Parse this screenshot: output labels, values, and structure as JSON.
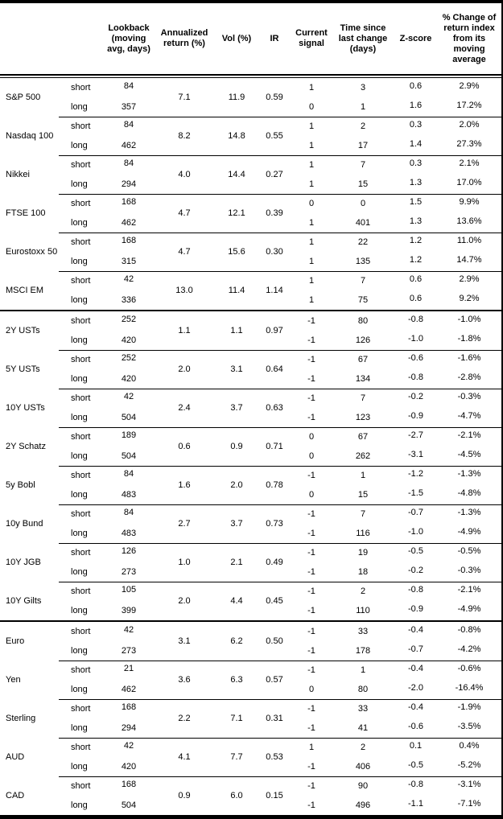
{
  "header": {
    "lookback": "Lookback\n(moving\navg, days)",
    "annualized_return": "Annualized\nreturn (%)",
    "vol": "Vol (%)",
    "ir": "IR",
    "current_signal": "Current\nsignal",
    "time_since_change": "Time since\nlast change\n(days)",
    "z_score": "Z-score",
    "pct_change": "% Change of\nreturn index\nfrom its\nmoving\naverage"
  },
  "sections": [
    {
      "instruments": [
        {
          "name": "S&P 500",
          "annualized_return": "7.1",
          "vol": "11.9",
          "ir": "0.59",
          "rows": [
            {
              "horizon": "short",
              "lookback": "84",
              "signal": "1",
              "time_since_change": "3",
              "z_score": "0.6",
              "pct_change": "2.9%"
            },
            {
              "horizon": "long",
              "lookback": "357",
              "signal": "0",
              "time_since_change": "1",
              "z_score": "1.6",
              "pct_change": "17.2%"
            }
          ]
        },
        {
          "name": "Nasdaq 100",
          "annualized_return": "8.2",
          "vol": "14.8",
          "ir": "0.55",
          "rows": [
            {
              "horizon": "short",
              "lookback": "84",
              "signal": "1",
              "time_since_change": "2",
              "z_score": "0.3",
              "pct_change": "2.0%"
            },
            {
              "horizon": "long",
              "lookback": "462",
              "signal": "1",
              "time_since_change": "17",
              "z_score": "1.4",
              "pct_change": "27.3%"
            }
          ]
        },
        {
          "name": "Nikkei",
          "annualized_return": "4.0",
          "vol": "14.4",
          "ir": "0.27",
          "rows": [
            {
              "horizon": "short",
              "lookback": "84",
              "signal": "1",
              "time_since_change": "7",
              "z_score": "0.3",
              "pct_change": "2.1%"
            },
            {
              "horizon": "long",
              "lookback": "294",
              "signal": "1",
              "time_since_change": "15",
              "z_score": "1.3",
              "pct_change": "17.0%"
            }
          ]
        },
        {
          "name": "FTSE 100",
          "annualized_return": "4.7",
          "vol": "12.1",
          "ir": "0.39",
          "rows": [
            {
              "horizon": "short",
              "lookback": "168",
              "signal": "0",
              "time_since_change": "0",
              "z_score": "1.5",
              "pct_change": "9.9%"
            },
            {
              "horizon": "long",
              "lookback": "462",
              "signal": "1",
              "time_since_change": "401",
              "z_score": "1.3",
              "pct_change": "13.6%"
            }
          ]
        },
        {
          "name": "Eurostoxx 50",
          "annualized_return": "4.7",
          "vol": "15.6",
          "ir": "0.30",
          "rows": [
            {
              "horizon": "short",
              "lookback": "168",
              "signal": "1",
              "time_since_change": "22",
              "z_score": "1.2",
              "pct_change": "11.0%"
            },
            {
              "horizon": "long",
              "lookback": "315",
              "signal": "1",
              "time_since_change": "135",
              "z_score": "1.2",
              "pct_change": "14.7%"
            }
          ]
        },
        {
          "name": "MSCI EM",
          "annualized_return": "13.0",
          "vol": "11.4",
          "ir": "1.14",
          "rows": [
            {
              "horizon": "short",
              "lookback": "42",
              "signal": "1",
              "time_since_change": "7",
              "z_score": "0.6",
              "pct_change": "2.9%"
            },
            {
              "horizon": "long",
              "lookback": "336",
              "signal": "1",
              "time_since_change": "75",
              "z_score": "0.6",
              "pct_change": "9.2%"
            }
          ]
        }
      ]
    },
    {
      "instruments": [
        {
          "name": "2Y USTs",
          "annualized_return": "1.1",
          "vol": "1.1",
          "ir": "0.97",
          "rows": [
            {
              "horizon": "short",
              "lookback": "252",
              "signal": "-1",
              "time_since_change": "80",
              "z_score": "-0.8",
              "pct_change": "-1.0%"
            },
            {
              "horizon": "long",
              "lookback": "420",
              "signal": "-1",
              "time_since_change": "126",
              "z_score": "-1.0",
              "pct_change": "-1.8%"
            }
          ]
        },
        {
          "name": "5Y USTs",
          "annualized_return": "2.0",
          "vol": "3.1",
          "ir": "0.64",
          "rows": [
            {
              "horizon": "short",
              "lookback": "252",
              "signal": "-1",
              "time_since_change": "67",
              "z_score": "-0.6",
              "pct_change": "-1.6%"
            },
            {
              "horizon": "long",
              "lookback": "420",
              "signal": "-1",
              "time_since_change": "134",
              "z_score": "-0.8",
              "pct_change": "-2.8%"
            }
          ]
        },
        {
          "name": "10Y USTs",
          "annualized_return": "2.4",
          "vol": "3.7",
          "ir": "0.63",
          "rows": [
            {
              "horizon": "short",
              "lookback": "42",
              "signal": "-1",
              "time_since_change": "7",
              "z_score": "-0.2",
              "pct_change": "-0.3%"
            },
            {
              "horizon": "long",
              "lookback": "504",
              "signal": "-1",
              "time_since_change": "123",
              "z_score": "-0.9",
              "pct_change": "-4.7%"
            }
          ]
        },
        {
          "name": "2Y Schatz",
          "annualized_return": "0.6",
          "vol": "0.9",
          "ir": "0.71",
          "rows": [
            {
              "horizon": "short",
              "lookback": "189",
              "signal": "0",
              "time_since_change": "67",
              "z_score": "-2.7",
              "pct_change": "-2.1%"
            },
            {
              "horizon": "long",
              "lookback": "504",
              "signal": "0",
              "time_since_change": "262",
              "z_score": "-3.1",
              "pct_change": "-4.5%"
            }
          ]
        },
        {
          "name": "5y Bobl",
          "annualized_return": "1.6",
          "vol": "2.0",
          "ir": "0.78",
          "rows": [
            {
              "horizon": "short",
              "lookback": "84",
              "signal": "-1",
              "time_since_change": "1",
              "z_score": "-1.2",
              "pct_change": "-1.3%"
            },
            {
              "horizon": "long",
              "lookback": "483",
              "signal": "0",
              "time_since_change": "15",
              "z_score": "-1.5",
              "pct_change": "-4.8%"
            }
          ]
        },
        {
          "name": "10y Bund",
          "annualized_return": "2.7",
          "vol": "3.7",
          "ir": "0.73",
          "rows": [
            {
              "horizon": "short",
              "lookback": "84",
              "signal": "-1",
              "time_since_change": "7",
              "z_score": "-0.7",
              "pct_change": "-1.3%"
            },
            {
              "horizon": "long",
              "lookback": "483",
              "signal": "-1",
              "time_since_change": "116",
              "z_score": "-1.0",
              "pct_change": "-4.9%"
            }
          ]
        },
        {
          "name": "10Y JGB",
          "annualized_return": "1.0",
          "vol": "2.1",
          "ir": "0.49",
          "rows": [
            {
              "horizon": "short",
              "lookback": "126",
              "signal": "-1",
              "time_since_change": "19",
              "z_score": "-0.5",
              "pct_change": "-0.5%"
            },
            {
              "horizon": "long",
              "lookback": "273",
              "signal": "-1",
              "time_since_change": "18",
              "z_score": "-0.2",
              "pct_change": "-0.3%"
            }
          ]
        },
        {
          "name": "10Y Gilts",
          "annualized_return": "2.0",
          "vol": "4.4",
          "ir": "0.45",
          "rows": [
            {
              "horizon": "short",
              "lookback": "105",
              "signal": "-1",
              "time_since_change": "2",
              "z_score": "-0.8",
              "pct_change": "-2.1%"
            },
            {
              "horizon": "long",
              "lookback": "399",
              "signal": "-1",
              "time_since_change": "110",
              "z_score": "-0.9",
              "pct_change": "-4.9%"
            }
          ]
        }
      ]
    },
    {
      "instruments": [
        {
          "name": "Euro",
          "annualized_return": "3.1",
          "vol": "6.2",
          "ir": "0.50",
          "rows": [
            {
              "horizon": "short",
              "lookback": "42",
              "signal": "-1",
              "time_since_change": "33",
              "z_score": "-0.4",
              "pct_change": "-0.8%"
            },
            {
              "horizon": "long",
              "lookback": "273",
              "signal": "-1",
              "time_since_change": "178",
              "z_score": "-0.7",
              "pct_change": "-4.2%"
            }
          ]
        },
        {
          "name": "Yen",
          "annualized_return": "3.6",
          "vol": "6.3",
          "ir": "0.57",
          "rows": [
            {
              "horizon": "short",
              "lookback": "21",
              "signal": "-1",
              "time_since_change": "1",
              "z_score": "-0.4",
              "pct_change": "-0.6%"
            },
            {
              "horizon": "long",
              "lookback": "462",
              "signal": "0",
              "time_since_change": "80",
              "z_score": "-2.0",
              "pct_change": "-16.4%"
            }
          ]
        },
        {
          "name": "Sterling",
          "annualized_return": "2.2",
          "vol": "7.1",
          "ir": "0.31",
          "rows": [
            {
              "horizon": "short",
              "lookback": "168",
              "signal": "-1",
              "time_since_change": "33",
              "z_score": "-0.4",
              "pct_change": "-1.9%"
            },
            {
              "horizon": "long",
              "lookback": "294",
              "signal": "-1",
              "time_since_change": "41",
              "z_score": "-0.6",
              "pct_change": "-3.5%"
            }
          ]
        },
        {
          "name": "AUD",
          "annualized_return": "4.1",
          "vol": "7.7",
          "ir": "0.53",
          "rows": [
            {
              "horizon": "short",
              "lookback": "42",
              "signal": "1",
              "time_since_change": "2",
              "z_score": "0.1",
              "pct_change": "0.4%"
            },
            {
              "horizon": "long",
              "lookback": "420",
              "signal": "-1",
              "time_since_change": "406",
              "z_score": "-0.5",
              "pct_change": "-5.2%"
            }
          ]
        },
        {
          "name": "CAD",
          "annualized_return": "0.9",
          "vol": "6.0",
          "ir": "0.15",
          "rows": [
            {
              "horizon": "short",
              "lookback": "168",
              "signal": "-1",
              "time_since_change": "90",
              "z_score": "-0.8",
              "pct_change": "-3.1%"
            },
            {
              "horizon": "long",
              "lookback": "504",
              "signal": "-1",
              "time_since_change": "496",
              "z_score": "-1.1",
              "pct_change": "-7.1%"
            }
          ]
        }
      ]
    }
  ]
}
